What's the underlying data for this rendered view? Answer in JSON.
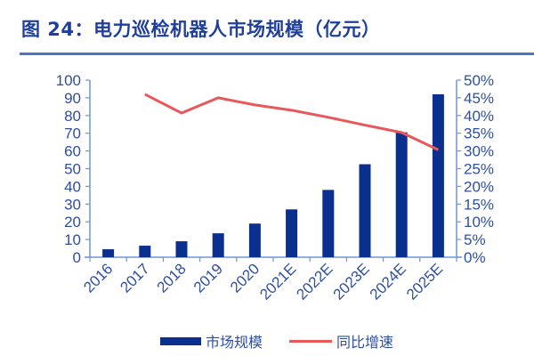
{
  "title": "图 24：电力巡检机器人市场规模（亿元）",
  "colors": {
    "bar": "#0a2f8f",
    "line": "#e8585b",
    "axis": "#6f96cf",
    "text": "#2e4fa0",
    "title": "#1f3f9a",
    "rule": "#4f74c2"
  },
  "legend": {
    "bar_label": "市场规模",
    "line_label": "同比增速"
  },
  "chart_data": {
    "type": "bar+line",
    "title": "图 24：电力巡检机器人市场规模（亿元）",
    "categories": [
      "2016",
      "2017",
      "2018",
      "2019",
      "2020",
      "2021E",
      "2022E",
      "2023E",
      "2024E",
      "2025E"
    ],
    "series": [
      {
        "name": "市场规模",
        "type": "bar",
        "axis": "left",
        "values": [
          4.5,
          6.5,
          9,
          13.5,
          19,
          27,
          38,
          52.5,
          70.5,
          92
        ]
      },
      {
        "name": "同比增速",
        "type": "line",
        "axis": "right",
        "values": [
          null,
          46.0,
          40.7,
          45.0,
          43.0,
          41.5,
          39.5,
          37.3,
          35.2,
          30.3
        ]
      }
    ],
    "left_axis": {
      "ticks": [
        "0",
        "10",
        "20",
        "30",
        "40",
        "50",
        "60",
        "70",
        "80",
        "90",
        "100"
      ],
      "ylim": [
        0,
        100
      ]
    },
    "right_axis": {
      "ticks": [
        "0%",
        "5%",
        "10%",
        "15%",
        "20%",
        "25%",
        "30%",
        "35%",
        "40%",
        "45%",
        "50%"
      ],
      "ylim": [
        0,
        50
      ]
    },
    "xlabel": "",
    "ylabel": "",
    "grid": false,
    "legend_position": "bottom"
  }
}
